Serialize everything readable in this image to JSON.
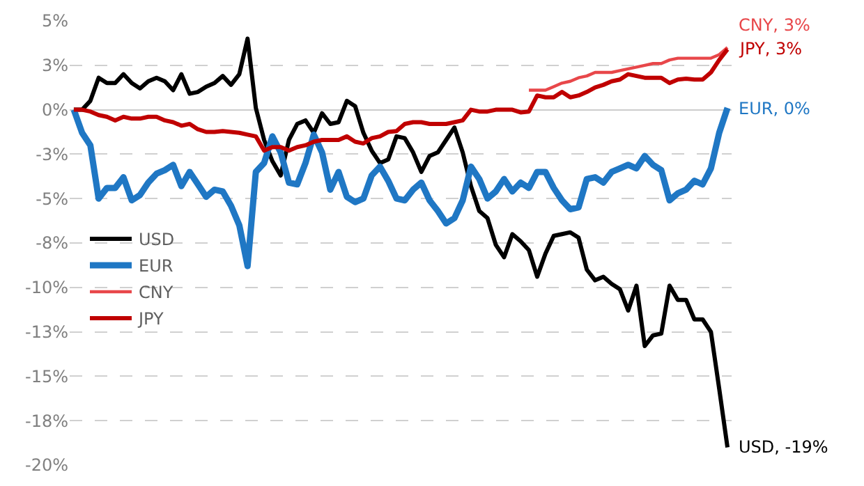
{
  "chart_data": {
    "type": "line",
    "categories": [
      null,
      null,
      null,
      null,
      null,
      null,
      null,
      null,
      null,
      null,
      null,
      null,
      null,
      null,
      null,
      null,
      null,
      null,
      null,
      null,
      null,
      null,
      null,
      null,
      null,
      null,
      null,
      null,
      null,
      null,
      null,
      null,
      null,
      null,
      null,
      null,
      null,
      null,
      null,
      null,
      null,
      null,
      null,
      null,
      null,
      null,
      null,
      null,
      null,
      null,
      null,
      null,
      null,
      null,
      null,
      null,
      null,
      null,
      null,
      null,
      null,
      null,
      null,
      null,
      null,
      null,
      null,
      null,
      null,
      null,
      null,
      null,
      null,
      null,
      null,
      null,
      null,
      null,
      null,
      null
    ],
    "series": [
      {
        "name": "USD",
        "color": "#000000",
        "values": [
          0.0,
          0.0,
          0.5,
          1.8,
          1.5,
          1.5,
          2.0,
          1.5,
          1.2,
          1.6,
          1.8,
          1.6,
          1.1,
          2.0,
          0.9,
          1.0,
          1.3,
          1.5,
          1.9,
          1.4,
          2.0,
          4.0,
          0.1,
          -1.7,
          -2.9,
          -3.7,
          -1.7,
          -0.8,
          -0.6,
          -1.3,
          -0.2,
          -0.8,
          -0.7,
          0.5,
          0.2,
          -1.3,
          -2.3,
          -3.0,
          -2.8,
          -1.5,
          -1.6,
          -2.4,
          -3.5,
          -2.6,
          -2.4,
          -1.7,
          -1.0,
          -2.4,
          -4.3,
          -5.7,
          -6.1,
          -7.6,
          -8.3,
          -7.0,
          -7.4,
          -7.9,
          -9.4,
          -8.1,
          -7.1,
          -7.0,
          -6.9,
          -7.2,
          -9.0,
          -9.6,
          -9.4,
          -9.8,
          -10.1,
          -11.3,
          -9.9,
          -13.3,
          -12.7,
          -12.6,
          -9.9,
          -10.7,
          -10.7,
          -11.8,
          -11.8,
          -12.5,
          -15.7,
          -19.0
        ]
      },
      {
        "name": "EUR",
        "color": "#1f77c4",
        "values": [
          0.0,
          -1.3,
          -2.0,
          -5.0,
          -4.4,
          -4.4,
          -3.8,
          -5.1,
          -4.8,
          -4.1,
          -3.6,
          -3.4,
          -3.1,
          -4.3,
          -3.5,
          -4.2,
          -4.9,
          -4.5,
          -4.6,
          -5.4,
          -6.5,
          -8.8,
          -3.5,
          -3.0,
          -1.5,
          -2.4,
          -4.1,
          -4.2,
          -3.0,
          -1.4,
          -2.4,
          -4.5,
          -3.5,
          -4.9,
          -5.2,
          -5.0,
          -3.7,
          -3.2,
          -4.0,
          -5.0,
          -5.1,
          -4.5,
          -4.1,
          -5.1,
          -5.7,
          -6.4,
          -6.1,
          -5.1,
          -3.2,
          -3.9,
          -5.0,
          -4.6,
          -3.9,
          -4.6,
          -4.1,
          -4.4,
          -3.5,
          -3.5,
          -4.4,
          -5.1,
          -5.6,
          -5.5,
          -3.9,
          -3.8,
          -4.1,
          -3.5,
          -3.3,
          -3.1,
          -3.3,
          -2.6,
          -3.1,
          -3.4,
          -5.1,
          -4.7,
          -4.5,
          -4.0,
          -4.2,
          -3.3,
          -1.3,
          0.1
        ]
      },
      {
        "name": "CNY",
        "color": "#e8474a",
        "values": [
          null,
          null,
          null,
          null,
          null,
          null,
          null,
          null,
          null,
          null,
          null,
          null,
          null,
          null,
          null,
          null,
          null,
          null,
          null,
          null,
          null,
          null,
          null,
          null,
          null,
          null,
          null,
          null,
          null,
          null,
          null,
          null,
          null,
          null,
          null,
          null,
          null,
          null,
          null,
          null,
          null,
          null,
          null,
          null,
          null,
          null,
          null,
          null,
          null,
          null,
          null,
          null,
          null,
          null,
          null,
          1.1,
          1.1,
          1.1,
          1.3,
          1.5,
          1.6,
          1.8,
          1.9,
          2.1,
          2.1,
          2.1,
          2.2,
          2.3,
          2.4,
          2.5,
          2.6,
          2.6,
          2.8,
          2.9,
          2.9,
          2.9,
          2.9,
          2.9,
          3.1,
          3.5
        ]
      },
      {
        "name": "JPY",
        "color": "#c00000",
        "values": [
          0.0,
          0.0,
          -0.1,
          -0.3,
          -0.4,
          -0.6,
          -0.4,
          -0.5,
          -0.5,
          -0.4,
          -0.4,
          -0.6,
          -0.7,
          -0.9,
          -0.8,
          -1.1,
          -1.25,
          -1.25,
          -1.2,
          -1.25,
          -1.3,
          -1.4,
          -1.5,
          -2.3,
          -2.1,
          -2.1,
          -2.3,
          -2.1,
          -2.0,
          -1.8,
          -1.7,
          -1.7,
          -1.7,
          -1.5,
          -1.8,
          -1.9,
          -1.6,
          -1.5,
          -1.25,
          -1.2,
          -0.8,
          -0.7,
          -0.7,
          -0.8,
          -0.8,
          -0.8,
          -0.7,
          -0.6,
          0.0,
          -0.1,
          -0.1,
          0.0,
          0.0,
          0.0,
          -0.15,
          -0.1,
          0.8,
          0.7,
          0.7,
          1.0,
          0.7,
          0.8,
          1.0,
          1.25,
          1.4,
          1.6,
          1.7,
          2.0,
          1.9,
          1.8,
          1.8,
          1.8,
          1.5,
          1.7,
          1.75,
          1.7,
          1.7,
          2.1,
          2.8,
          3.4
        ]
      }
    ],
    "annotations": [
      "USD, -19%",
      "EUR, 0%",
      "CNY, 3%",
      "JPY, 3%"
    ],
    "ylim": [
      -20,
      5
    ],
    "yticks": [
      {
        "value": 5,
        "label": "5%"
      },
      {
        "value": 2.5,
        "label": "3%"
      },
      {
        "value": 0,
        "label": "0%"
      },
      {
        "value": -2.5,
        "label": "-3%"
      },
      {
        "value": -5,
        "label": "-5%"
      },
      {
        "value": -7.5,
        "label": "-8%"
      },
      {
        "value": -10,
        "label": "-10%"
      },
      {
        "value": -12.5,
        "label": "-13%"
      },
      {
        "value": -15,
        "label": "-15%"
      },
      {
        "value": -17.5,
        "label": "-18%"
      },
      {
        "value": -20,
        "label": "-20%"
      }
    ],
    "tick_labels": "y",
    "grid": "y",
    "legend": "left",
    "marker": "none",
    "line_style": "solid"
  }
}
